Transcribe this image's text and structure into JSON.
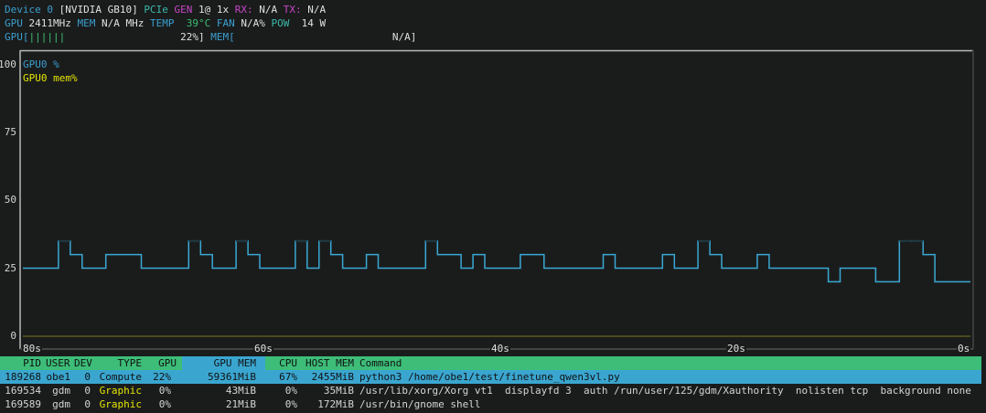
{
  "device": {
    "label": "Device 0",
    "name": "[NVIDIA GB10]",
    "pcie_label": "PCIe",
    "gen_label": "GEN",
    "gen_value": "1@ 1x",
    "rx_label": "RX:",
    "rx_value": "N/A",
    "tx_label": "TX:",
    "tx_value": "N/A"
  },
  "stats": {
    "gpu_label": "GPU",
    "gpu_clock": "2411MHz",
    "mem_label": "MEM",
    "mem_clock": "N/A MHz",
    "temp_label": "TEMP",
    "temp_value": "39°C",
    "fan_label": "FAN",
    "fan_value": "N/A%",
    "pow_label": "POW",
    "pow_value": "14 W"
  },
  "bars": {
    "gpu_label": "GPU[",
    "gpu_bar": "||||||",
    "gpu_value": "22%]",
    "gpu_percent": 22,
    "mem_label": "MEM[",
    "mem_value": "N/A]"
  },
  "colors": {
    "gpu_line": "#3aa8d4",
    "mem_line": "#4a4a1e",
    "header_green": "#3dbd78",
    "header_blue": "#3aa6d0",
    "graphic_type": "#e6e600"
  },
  "chart_data": {
    "type": "line",
    "legend": [
      "GPU0 %",
      "GPU0 mem%"
    ],
    "legend_placement": "top-left",
    "yticks": [
      "100",
      "75",
      "50",
      "25",
      "0"
    ],
    "ylim": [
      0,
      100
    ],
    "xticks": [
      "80s",
      "60s",
      "40s",
      "20s",
      "0s"
    ],
    "xlim": [
      80,
      0
    ],
    "grid": false,
    "series": [
      {
        "name": "GPU0 %",
        "values": [
          25,
          25,
          25,
          35,
          30,
          25,
          25,
          30,
          30,
          30,
          25,
          25,
          25,
          25,
          35,
          30,
          25,
          25,
          35,
          30,
          25,
          25,
          25,
          35,
          25,
          35,
          30,
          25,
          25,
          30,
          25,
          25,
          25,
          25,
          35,
          30,
          30,
          25,
          30,
          25,
          25,
          25,
          30,
          30,
          25,
          25,
          25,
          25,
          25,
          30,
          25,
          25,
          25,
          25,
          30,
          25,
          25,
          35,
          30,
          25,
          25,
          25,
          30,
          25,
          25,
          25,
          25,
          25,
          20,
          25,
          25,
          25,
          20,
          20,
          35,
          35,
          30,
          20,
          20,
          20
        ]
      },
      {
        "name": "GPU0 mem%",
        "values": [
          0,
          0,
          0,
          0,
          0,
          0,
          0,
          0,
          0,
          0,
          0,
          0,
          0,
          0,
          0,
          0,
          0,
          0,
          0,
          0,
          0,
          0,
          0,
          0,
          0,
          0,
          0,
          0,
          0,
          0,
          0,
          0,
          0,
          0,
          0,
          0,
          0,
          0,
          0,
          0,
          0,
          0,
          0,
          0,
          0,
          0,
          0,
          0,
          0,
          0,
          0,
          0,
          0,
          0,
          0,
          0,
          0,
          0,
          0,
          0,
          0,
          0,
          0,
          0,
          0,
          0,
          0,
          0,
          0,
          0,
          0,
          0,
          0,
          0,
          0,
          0,
          0,
          0,
          0,
          0
        ]
      }
    ]
  },
  "processes": {
    "headers": [
      "PID",
      "USER",
      "DEV",
      "TYPE",
      "GPU",
      "GPU MEM",
      "CPU",
      "HOST MEM",
      "Command"
    ],
    "rows": [
      {
        "pid": "189268",
        "user": "obe1",
        "dev": "0",
        "type": "Compute",
        "gpu": "22%",
        "gpu_mem": "59361MiB",
        "cpu": "67%",
        "host_mem": "2455MiB",
        "command": "python3 /home/obe1/test/finetune_qwen3vl.py"
      },
      {
        "pid": "169534",
        "user": "gdm",
        "dev": "0",
        "type": "Graphic",
        "gpu": "0%",
        "gpu_mem": "43MiB",
        "cpu": "0%",
        "host_mem": "35MiB",
        "command": "/usr/lib/xorg/Xorg vt1  displayfd 3  auth /run/user/125/gdm/Xauthority  nolisten tcp  background none"
      },
      {
        "pid": "169589",
        "user": "gdm",
        "dev": "0",
        "type": "Graphic",
        "gpu": "0%",
        "gpu_mem": "21MiB",
        "cpu": "0%",
        "host_mem": "172MiB",
        "command": "/usr/bin/gnome shell"
      }
    ]
  }
}
